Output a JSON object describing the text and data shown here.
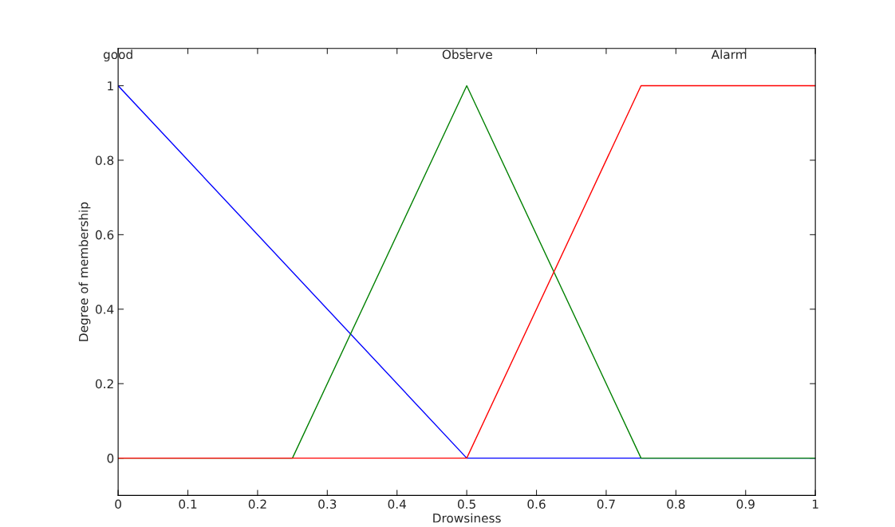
{
  "chart_data": {
    "type": "line",
    "xlabel": "Drowsiness",
    "ylabel": "Degree of membership",
    "xlim": [
      0,
      1
    ],
    "ylim": [
      -0.1,
      1.1
    ],
    "xticks": [
      0,
      0.1,
      0.2,
      0.3,
      0.4,
      0.5,
      0.6,
      0.7,
      0.8,
      0.9,
      1
    ],
    "yticks": [
      0,
      0.2,
      0.4,
      0.6,
      0.8,
      1
    ],
    "grid": false,
    "series": [
      {
        "name": "good",
        "color": "#0000ff",
        "x": [
          0,
          0.5,
          1
        ],
        "values": [
          1,
          0,
          0
        ]
      },
      {
        "name": "Observe",
        "color": "#008000",
        "x": [
          0,
          0.25,
          0.5,
          0.75,
          1
        ],
        "values": [
          0,
          0,
          1,
          0,
          0
        ]
      },
      {
        "name": "Alarm",
        "color": "#ff0000",
        "x": [
          0,
          0.5,
          0.75,
          1
        ],
        "values": [
          0,
          0,
          1,
          1
        ]
      }
    ]
  }
}
